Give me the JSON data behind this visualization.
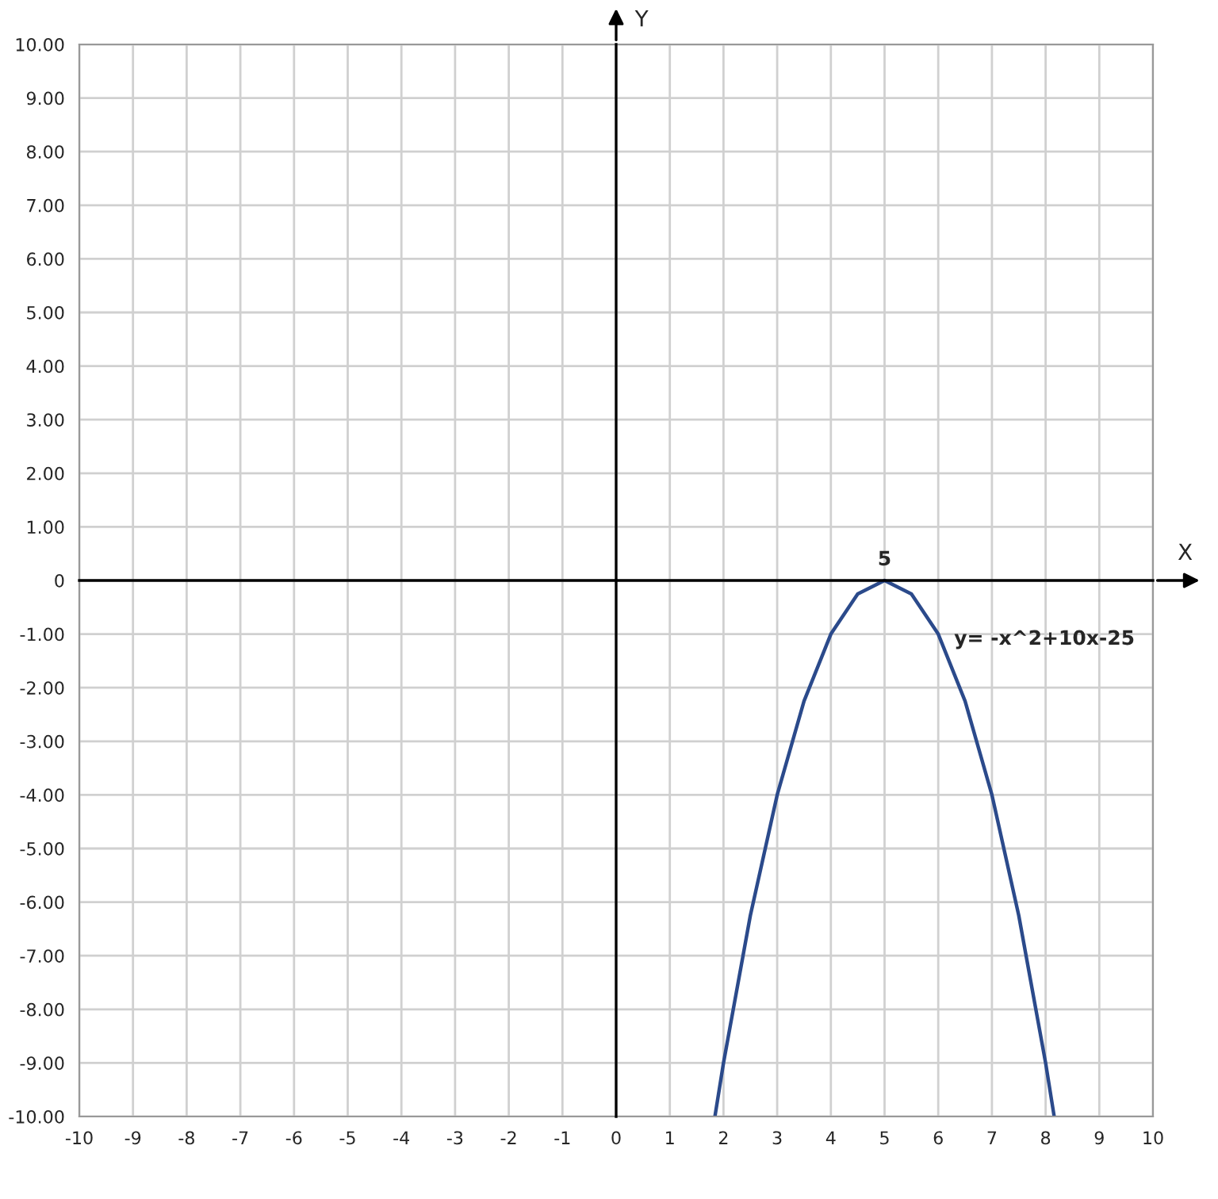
{
  "chart_data": {
    "type": "line",
    "xlabel": "X",
    "ylabel": "Y",
    "series": [
      {
        "color": "#2b4a8b",
        "x": [
          1.84,
          2,
          2.5,
          3,
          3.5,
          4,
          4.5,
          5,
          5.5,
          6,
          6.5,
          7,
          7.5,
          8,
          8.16
        ],
        "values": [
          -10,
          -9,
          -6.25,
          -4,
          -2.25,
          -1,
          -0.25,
          0,
          -0.25,
          -1,
          -2.25,
          -4,
          -6.25,
          -9,
          -10
        ]
      }
    ],
    "xlim": [
      -10,
      10
    ],
    "ylim": [
      -10,
      10
    ],
    "xticks": [
      -10,
      -9,
      -8,
      -7,
      -6,
      -5,
      -4,
      -3,
      -2,
      -1,
      0,
      1,
      2,
      3,
      4,
      5,
      6,
      7,
      8,
      9,
      10
    ],
    "yticks": [
      {
        "value": -10,
        "label": "-10.00"
      },
      {
        "value": -9,
        "label": "-9.00"
      },
      {
        "value": -8,
        "label": "-8.00"
      },
      {
        "value": -7,
        "label": "-7.00"
      },
      {
        "value": -6,
        "label": "-6.00"
      },
      {
        "value": -5,
        "label": "-5.00"
      },
      {
        "value": -4,
        "label": "-4.00"
      },
      {
        "value": -3,
        "label": "-3.00"
      },
      {
        "value": -2,
        "label": "-2.00"
      },
      {
        "value": -1,
        "label": "-1.00"
      },
      0,
      {
        "value": 1,
        "label": "1.00"
      },
      {
        "value": 2,
        "label": "2.00"
      },
      {
        "value": 3,
        "label": "3.00"
      },
      {
        "value": 4,
        "label": "4.00"
      },
      {
        "value": 5,
        "label": "5.00"
      },
      {
        "value": 6,
        "label": "6.00"
      },
      {
        "value": 7,
        "label": "7.00"
      },
      {
        "value": 8,
        "label": "8.00"
      },
      {
        "value": 9,
        "label": "9.00"
      },
      {
        "value": 10,
        "label": "10.00"
      }
    ],
    "annotations": [
      {
        "text": "5",
        "x": 5,
        "y": 0
      },
      {
        "text": "y= -x^2+10x-25",
        "x": 6.05,
        "y": -1.1
      }
    ],
    "grid": true,
    "marker": "none",
    "line_style": "solid"
  }
}
